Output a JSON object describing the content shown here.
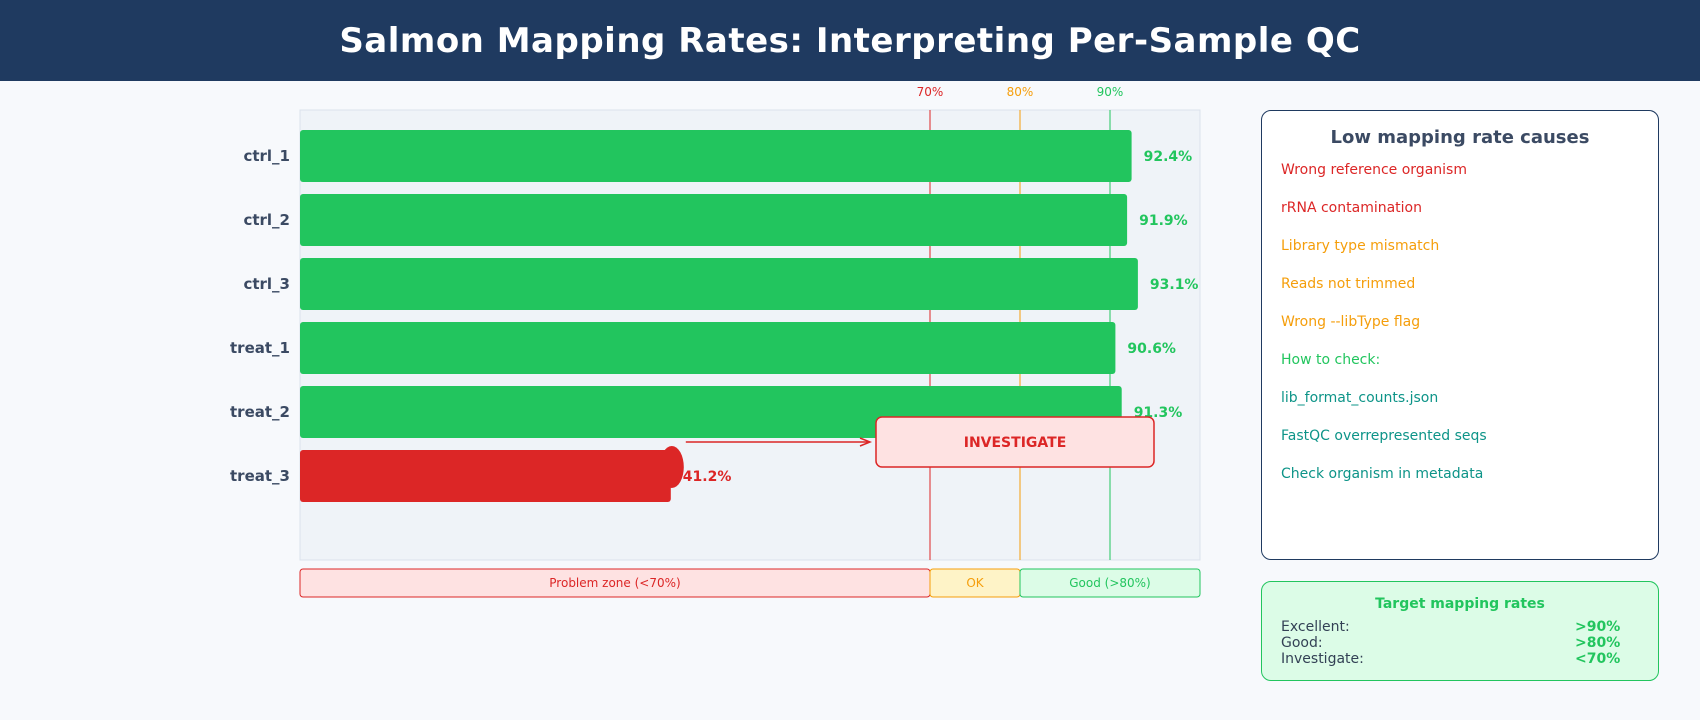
{
  "page_title": "Salmon Mapping Rates: Interpreting Per-Sample QC",
  "colors": {
    "good": "#22c55e",
    "bad": "#dc2626",
    "warn": "#f59e0b",
    "teal": "#0d9488",
    "header_bg": "#1f3a60",
    "label": "#3b4a63"
  },
  "chart_data": {
    "type": "bar",
    "orientation": "horizontal",
    "categories": [
      "ctrl_1",
      "ctrl_2",
      "ctrl_3",
      "treat_1",
      "treat_2",
      "treat_3"
    ],
    "values": [
      92.4,
      91.9,
      93.1,
      90.6,
      91.3,
      41.2
    ],
    "value_labels": [
      "92.4%",
      "91.9%",
      "93.1%",
      "90.6%",
      "91.3%",
      "41.2%"
    ],
    "bar_status": [
      "good",
      "good",
      "good",
      "good",
      "good",
      "bad"
    ],
    "xlim": [
      0,
      100
    ],
    "thresholds": [
      {
        "value": 70,
        "label": "70%",
        "color": "#dc2626"
      },
      {
        "value": 80,
        "label": "80%",
        "color": "#f59e0b"
      },
      {
        "value": 90,
        "label": "90%",
        "color": "#22c55e"
      }
    ],
    "zones": [
      {
        "from": 0,
        "to": 70,
        "label": "Problem zone (<70%)",
        "color": "#dc2626",
        "fill": "#fee2e2"
      },
      {
        "from": 70,
        "to": 80,
        "label": "OK",
        "color": "#f59e0b",
        "fill": "#fef3c7"
      },
      {
        "from": 80,
        "to": 100,
        "label": "Good (>80%)",
        "color": "#22c55e",
        "fill": "#dcfce7"
      }
    ],
    "annotation": {
      "text": "INVESTIGATE",
      "target": "treat_3"
    }
  },
  "causes_panel": {
    "title": "Low mapping rate causes",
    "items": [
      {
        "text": "Wrong reference organism",
        "color": "#dc2626"
      },
      {
        "text": "rRNA contamination",
        "color": "#dc2626"
      },
      {
        "text": "Library type mismatch",
        "color": "#f59e0b"
      },
      {
        "text": "Reads not trimmed",
        "color": "#f59e0b"
      },
      {
        "text": "Wrong --libType flag",
        "color": "#f59e0b"
      },
      {
        "text": "How to check:",
        "color": "#22c55e"
      },
      {
        "text": "lib_format_counts.json",
        "color": "#0d9488"
      },
      {
        "text": "FastQC overrepresented seqs",
        "color": "#0d9488"
      },
      {
        "text": "Check organism in metadata",
        "color": "#0d9488"
      }
    ]
  },
  "targets_panel": {
    "title": "Target mapping rates",
    "rows": [
      {
        "label": "Excellent:",
        "value": ">90%"
      },
      {
        "label": "Good:",
        "value": ">80%"
      },
      {
        "label": "Investigate:",
        "value": "<70%"
      }
    ]
  }
}
